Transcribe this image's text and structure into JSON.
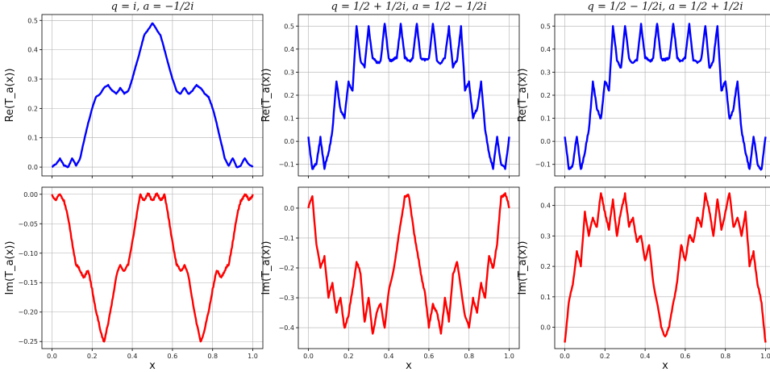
{
  "figure": {
    "columns": [
      {
        "title": "q = i,  a = −1/2i"
      },
      {
        "title": "q = 1/2 + 1/2i,  a = 1/2 − 1/2i"
      },
      {
        "title": "q = 1/2 − 1/2i,  a = 1/2 + 1/2i"
      }
    ],
    "row_ylabels": [
      "Re(T_a(x))",
      "Im(T_a(x))"
    ],
    "xlabel": "x"
  },
  "chart_data": [
    {
      "type": "line",
      "panel": "row1-col1",
      "title": "q = i,  a = −1/2i",
      "xlabel": "",
      "ylabel": "Re(T_a(x))",
      "xlim": [
        -0.05,
        1.05
      ],
      "ylim": [
        -0.03,
        0.52
      ],
      "xticks": [
        0.0,
        0.2,
        0.4,
        0.6,
        0.8,
        1.0
      ],
      "yticks": [
        0.0,
        0.1,
        0.2,
        0.3,
        0.4,
        0.5
      ],
      "yticklabels": [
        "0.0",
        "0.1",
        "0.2",
        "0.3",
        "0.4",
        "0.5"
      ],
      "grid": true,
      "color": "#0000ff",
      "series": [
        {
          "x": [
            0.0,
            0.02,
            0.04,
            0.06,
            0.08,
            0.1,
            0.12,
            0.14,
            0.16,
            0.18,
            0.2,
            0.22,
            0.24,
            0.26,
            0.28,
            0.3,
            0.32,
            0.34,
            0.36,
            0.38,
            0.4,
            0.42,
            0.44,
            0.46,
            0.48,
            0.5,
            0.52,
            0.54,
            0.56,
            0.58,
            0.6,
            0.62,
            0.64,
            0.66,
            0.68,
            0.7,
            0.72,
            0.74,
            0.76,
            0.78,
            0.8,
            0.82,
            0.84,
            0.86,
            0.88,
            0.9,
            0.92,
            0.94,
            0.96,
            0.98,
            1.0
          ],
          "values": [
            0.0,
            0.01,
            0.03,
            0.005,
            0.0,
            0.03,
            0.005,
            0.03,
            0.09,
            0.15,
            0.2,
            0.24,
            0.25,
            0.27,
            0.28,
            0.26,
            0.25,
            0.27,
            0.25,
            0.26,
            0.3,
            0.35,
            0.4,
            0.45,
            0.47,
            0.49,
            0.47,
            0.45,
            0.4,
            0.35,
            0.3,
            0.26,
            0.25,
            0.27,
            0.25,
            0.26,
            0.28,
            0.27,
            0.25,
            0.24,
            0.2,
            0.15,
            0.09,
            0.03,
            0.005,
            0.03,
            0.0,
            0.005,
            0.03,
            0.01,
            0.0
          ]
        }
      ]
    },
    {
      "type": "line",
      "panel": "row1-col2",
      "title": "q = 1/2 + 1/2i,  a = 1/2 − 1/2i",
      "xlabel": "",
      "ylabel": "Re(T_a(x))",
      "xlim": [
        -0.05,
        1.05
      ],
      "ylim": [
        -0.15,
        0.55
      ],
      "xticks": [
        0.0,
        0.2,
        0.4,
        0.6,
        0.8,
        1.0
      ],
      "yticks": [
        -0.1,
        0.0,
        0.1,
        0.2,
        0.3,
        0.4,
        0.5
      ],
      "yticklabels": [
        "−0.1",
        "0.0",
        "0.1",
        "0.2",
        "0.3",
        "0.4",
        "0.5"
      ],
      "grid": true,
      "color": "#0000ff",
      "series": [
        {
          "x": [
            0.0,
            0.02,
            0.04,
            0.06,
            0.08,
            0.1,
            0.12,
            0.14,
            0.16,
            0.18,
            0.2,
            0.22,
            0.24,
            0.26,
            0.28,
            0.3,
            0.32,
            0.34,
            0.36,
            0.38,
            0.4,
            0.42,
            0.44,
            0.46,
            0.48,
            0.5,
            0.52,
            0.54,
            0.56,
            0.58,
            0.6,
            0.62,
            0.64,
            0.66,
            0.68,
            0.7,
            0.72,
            0.74,
            0.76,
            0.78,
            0.8,
            0.82,
            0.84,
            0.86,
            0.88,
            0.9,
            0.92,
            0.94,
            0.96,
            0.98,
            1.0
          ],
          "values": [
            0.02,
            -0.12,
            -0.1,
            0.02,
            -0.12,
            -0.05,
            0.05,
            0.26,
            0.14,
            0.1,
            0.26,
            0.22,
            0.5,
            0.35,
            0.32,
            0.5,
            0.36,
            0.34,
            0.35,
            0.51,
            0.36,
            0.35,
            0.36,
            0.51,
            0.36,
            0.35,
            0.36,
            0.51,
            0.36,
            0.35,
            0.36,
            0.51,
            0.35,
            0.34,
            0.36,
            0.5,
            0.32,
            0.35,
            0.5,
            0.22,
            0.26,
            0.1,
            0.14,
            0.26,
            0.05,
            -0.05,
            -0.12,
            0.02,
            -0.1,
            -0.12,
            0.02
          ]
        }
      ]
    },
    {
      "type": "line",
      "panel": "row1-col3",
      "title": "q = 1/2 − 1/2i,  a = 1/2 + 1/2i",
      "xlabel": "",
      "ylabel": "Re(T_a(x))",
      "xlim": [
        -0.05,
        1.05
      ],
      "ylim": [
        -0.15,
        0.55
      ],
      "xticks": [
        0.0,
        0.2,
        0.4,
        0.6,
        0.8,
        1.0
      ],
      "yticks": [
        -0.1,
        0.0,
        0.1,
        0.2,
        0.3,
        0.4,
        0.5
      ],
      "yticklabels": [
        "−0.1",
        "0.0",
        "0.1",
        "0.2",
        "0.3",
        "0.4",
        "0.5"
      ],
      "grid": true,
      "color": "#0000ff",
      "series": [
        {
          "x": [
            0.0,
            0.02,
            0.04,
            0.06,
            0.08,
            0.1,
            0.12,
            0.14,
            0.16,
            0.18,
            0.2,
            0.22,
            0.24,
            0.26,
            0.28,
            0.3,
            0.32,
            0.34,
            0.36,
            0.38,
            0.4,
            0.42,
            0.44,
            0.46,
            0.48,
            0.5,
            0.52,
            0.54,
            0.56,
            0.58,
            0.6,
            0.62,
            0.64,
            0.66,
            0.68,
            0.7,
            0.72,
            0.74,
            0.76,
            0.78,
            0.8,
            0.82,
            0.84,
            0.86,
            0.88,
            0.9,
            0.92,
            0.94,
            0.96,
            0.98,
            1.0
          ],
          "values": [
            0.02,
            -0.12,
            -0.1,
            0.02,
            -0.12,
            -0.05,
            0.05,
            0.26,
            0.14,
            0.1,
            0.26,
            0.22,
            0.5,
            0.35,
            0.32,
            0.5,
            0.36,
            0.34,
            0.35,
            0.51,
            0.36,
            0.35,
            0.36,
            0.51,
            0.36,
            0.35,
            0.36,
            0.51,
            0.36,
            0.35,
            0.36,
            0.51,
            0.35,
            0.34,
            0.36,
            0.5,
            0.32,
            0.35,
            0.5,
            0.22,
            0.26,
            0.1,
            0.14,
            0.26,
            0.05,
            -0.05,
            -0.12,
            0.02,
            -0.1,
            -0.12,
            0.02
          ]
        }
      ]
    },
    {
      "type": "line",
      "panel": "row2-col1",
      "title": "",
      "xlabel": "x",
      "ylabel": "Im(T_a(x))",
      "xlim": [
        -0.05,
        1.05
      ],
      "ylim": [
        -0.262,
        0.012
      ],
      "xticks": [
        0.0,
        0.2,
        0.4,
        0.6,
        0.8,
        1.0
      ],
      "xticklabels": [
        "0.0",
        "0.2",
        "0.4",
        "0.6",
        "0.8",
        "1.0"
      ],
      "yticks": [
        0.0,
        -0.05,
        -0.1,
        -0.15,
        -0.2,
        -0.25
      ],
      "yticklabels": [
        "0.00",
        "−0.05",
        "−0.10",
        "−0.15",
        "−0.20",
        "−0.25"
      ],
      "grid": true,
      "color": "#ff0000",
      "series": [
        {
          "x": [
            0.0,
            0.02,
            0.04,
            0.06,
            0.08,
            0.1,
            0.12,
            0.14,
            0.16,
            0.18,
            0.2,
            0.22,
            0.24,
            0.26,
            0.28,
            0.3,
            0.32,
            0.34,
            0.36,
            0.38,
            0.4,
            0.42,
            0.44,
            0.46,
            0.48,
            0.5,
            0.52,
            0.54,
            0.56,
            0.58,
            0.6,
            0.62,
            0.64,
            0.66,
            0.68,
            0.7,
            0.72,
            0.74,
            0.76,
            0.78,
            0.8,
            0.82,
            0.84,
            0.86,
            0.88,
            0.9,
            0.92,
            0.94,
            0.96,
            0.98,
            1.0
          ],
          "values": [
            0.0,
            -0.01,
            0.0,
            -0.01,
            -0.04,
            -0.08,
            -0.12,
            -0.13,
            -0.14,
            -0.13,
            -0.16,
            -0.2,
            -0.23,
            -0.25,
            -0.22,
            -0.18,
            -0.14,
            -0.12,
            -0.13,
            -0.12,
            -0.08,
            -0.04,
            0.0,
            -0.01,
            0.0,
            -0.01,
            0.0,
            -0.01,
            0.0,
            -0.04,
            -0.08,
            -0.12,
            -0.13,
            -0.12,
            -0.14,
            -0.18,
            -0.22,
            -0.25,
            -0.23,
            -0.2,
            -0.16,
            -0.13,
            -0.14,
            -0.13,
            -0.12,
            -0.08,
            -0.04,
            -0.01,
            0.0,
            -0.01,
            0.0
          ]
        }
      ]
    },
    {
      "type": "line",
      "panel": "row2-col2",
      "title": "",
      "xlabel": "x",
      "ylabel": "Im(T_a(x))",
      "xlim": [
        -0.05,
        1.05
      ],
      "ylim": [
        -0.47,
        0.07
      ],
      "xticks": [
        0.0,
        0.2,
        0.4,
        0.6,
        0.8,
        1.0
      ],
      "xticklabels": [
        "0.0",
        "0.2",
        "0.4",
        "0.6",
        "0.8",
        "1.0"
      ],
      "yticks": [
        0.0,
        -0.1,
        -0.2,
        -0.3,
        -0.4
      ],
      "yticklabels": [
        "0.0",
        "−0.1",
        "−0.2",
        "−0.3",
        "−0.4"
      ],
      "grid": true,
      "color": "#ff0000",
      "series": [
        {
          "x": [
            0.0,
            0.02,
            0.04,
            0.06,
            0.08,
            0.1,
            0.12,
            0.14,
            0.16,
            0.18,
            0.2,
            0.22,
            0.24,
            0.26,
            0.28,
            0.3,
            0.32,
            0.34,
            0.36,
            0.38,
            0.4,
            0.42,
            0.44,
            0.46,
            0.48,
            0.5,
            0.52,
            0.54,
            0.56,
            0.58,
            0.6,
            0.62,
            0.64,
            0.66,
            0.68,
            0.7,
            0.72,
            0.74,
            0.76,
            0.78,
            0.8,
            0.82,
            0.84,
            0.86,
            0.88,
            0.9,
            0.92,
            0.94,
            0.96,
            0.98,
            1.0
          ],
          "values": [
            0.0,
            0.04,
            -0.12,
            -0.2,
            -0.16,
            -0.3,
            -0.25,
            -0.35,
            -0.3,
            -0.4,
            -0.36,
            -0.27,
            -0.18,
            -0.22,
            -0.38,
            -0.3,
            -0.42,
            -0.35,
            -0.32,
            -0.4,
            -0.28,
            -0.22,
            -0.14,
            -0.05,
            0.04,
            0.04,
            -0.05,
            -0.14,
            -0.22,
            -0.28,
            -0.4,
            -0.32,
            -0.35,
            -0.42,
            -0.3,
            -0.38,
            -0.22,
            -0.18,
            -0.27,
            -0.36,
            -0.4,
            -0.3,
            -0.35,
            -0.25,
            -0.3,
            -0.16,
            -0.2,
            -0.12,
            0.04,
            0.05,
            0.0
          ]
        }
      ]
    },
    {
      "type": "line",
      "panel": "row2-col3",
      "title": "",
      "xlabel": "x",
      "ylabel": "Im(T_a(x))",
      "xlim": [
        -0.05,
        1.05
      ],
      "ylim": [
        -0.07,
        0.46
      ],
      "xticks": [
        0.0,
        0.2,
        0.4,
        0.6,
        0.8,
        1.0
      ],
      "xticklabels": [
        "0.0",
        "0.2",
        "0.4",
        "0.6",
        "0.8",
        "1.0"
      ],
      "yticks": [
        0.0,
        0.1,
        0.2,
        0.3,
        0.4
      ],
      "yticklabels": [
        "0.0",
        "0.1",
        "0.2",
        "0.3",
        "0.4"
      ],
      "grid": true,
      "color": "#ff0000",
      "series": [
        {
          "x": [
            0.0,
            0.02,
            0.04,
            0.06,
            0.08,
            0.1,
            0.12,
            0.14,
            0.16,
            0.18,
            0.2,
            0.22,
            0.24,
            0.26,
            0.28,
            0.3,
            0.32,
            0.34,
            0.36,
            0.38,
            0.4,
            0.42,
            0.44,
            0.46,
            0.48,
            0.5,
            0.52,
            0.54,
            0.56,
            0.58,
            0.6,
            0.62,
            0.64,
            0.66,
            0.68,
            0.7,
            0.72,
            0.74,
            0.76,
            0.78,
            0.8,
            0.82,
            0.84,
            0.86,
            0.88,
            0.9,
            0.92,
            0.94,
            0.96,
            0.98,
            1.0
          ],
          "values": [
            -0.05,
            0.08,
            0.14,
            0.25,
            0.2,
            0.38,
            0.3,
            0.36,
            0.33,
            0.44,
            0.38,
            0.32,
            0.42,
            0.3,
            0.38,
            0.44,
            0.33,
            0.36,
            0.28,
            0.3,
            0.22,
            0.27,
            0.15,
            0.08,
            0.0,
            -0.03,
            0.0,
            0.08,
            0.15,
            0.27,
            0.22,
            0.3,
            0.28,
            0.36,
            0.33,
            0.44,
            0.38,
            0.3,
            0.42,
            0.32,
            0.38,
            0.44,
            0.33,
            0.36,
            0.3,
            0.38,
            0.2,
            0.25,
            0.14,
            0.08,
            -0.05
          ]
        }
      ]
    }
  ]
}
